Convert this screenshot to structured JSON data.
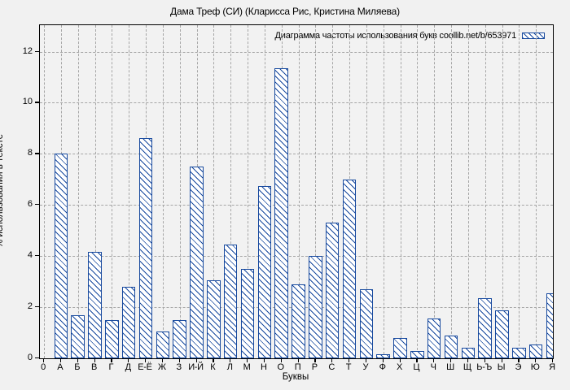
{
  "title": "Дама Треф (СИ) (Кларисса Рис, Кристина Миляева)",
  "colors": {
    "bar_blue": "#17499e",
    "grid_gray": "#a6a6a6",
    "background": "#f1f1f1",
    "axis": "#000000"
  },
  "chart_data": {
    "type": "bar",
    "title": "Дама Треф (СИ) (Кларисса Рис, Кристина Миляева)",
    "legend_label": "Диаграмма частоты использования букв coollib.net/b/653971",
    "legend_position": "top-right-inside",
    "xlabel": "Буквы",
    "ylabel": "% использования в тексте",
    "origin_tick_label": "0",
    "yticks": [
      0,
      2,
      4,
      6,
      8,
      10,
      12
    ],
    "ylim": [
      0,
      13.03
    ],
    "grid": true,
    "bar_style": "white fill with blue diagonal hatch",
    "categories": [
      "А",
      "Б",
      "В",
      "Г",
      "Д",
      "Е-Ё",
      "Ж",
      "З",
      "И-Й",
      "К",
      "Л",
      "М",
      "Н",
      "О",
      "П",
      "Р",
      "С",
      "Т",
      "У",
      "Ф",
      "Х",
      "Ц",
      "Ч",
      "Ш",
      "Щ",
      "Ь-Ъ",
      "Ы",
      "Э",
      "Ю",
      "Я"
    ],
    "values": [
      8.0,
      1.7,
      4.15,
      1.5,
      2.8,
      8.6,
      1.05,
      1.5,
      7.5,
      3.05,
      4.45,
      3.5,
      6.75,
      11.35,
      2.9,
      4.0,
      5.3,
      7.0,
      2.7,
      0.15,
      0.8,
      0.3,
      1.55,
      0.9,
      0.4,
      2.35,
      1.88,
      0.4,
      0.55,
      2.55
    ]
  }
}
